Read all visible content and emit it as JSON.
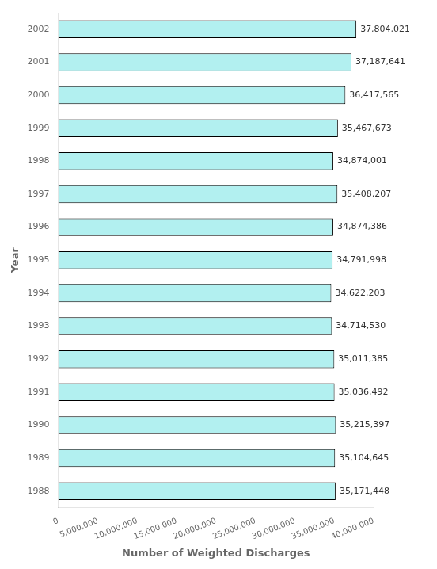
{
  "chart_data": {
    "type": "bar",
    "orientation": "horizontal",
    "categories": [
      "2002",
      "2001",
      "2000",
      "1999",
      "1998",
      "1997",
      "1996",
      "1995",
      "1994",
      "1993",
      "1992",
      "1991",
      "1990",
      "1989",
      "1988"
    ],
    "values": [
      37804021,
      37187641,
      36417565,
      35467673,
      34874001,
      35408207,
      34874386,
      34791998,
      34622203,
      34714530,
      35011385,
      35036492,
      35215397,
      35104645,
      35171448
    ],
    "value_labels": [
      "37,804,021",
      "37,187,641",
      "36,417,565",
      "35,467,673",
      "34,874,001",
      "35,408,207",
      "34,874,386",
      "34,791,998",
      "34,622,203",
      "34,714,530",
      "35,011,385",
      "35,036,492",
      "35,215,397",
      "35,104,645",
      "35,171,448"
    ],
    "data_labels": true,
    "color": "#b2f0f0",
    "xlabel": "Number of Weighted Discharges",
    "ylabel": "Year",
    "xlim": [
      0,
      40000000
    ],
    "xticks": [
      0,
      {
        "value": 5000000,
        "label": "5,000,000"
      },
      {
        "value": 10000000,
        "label": "10,000,000"
      },
      {
        "value": 15000000,
        "label": "15,000,000"
      },
      {
        "value": 20000000,
        "label": "20,000,000"
      },
      {
        "value": 25000000,
        "label": "25,000,000"
      },
      {
        "value": 30000000,
        "label": "30,000,000"
      },
      {
        "value": 35000000,
        "label": "35,000,000"
      },
      {
        "value": 40000000,
        "label": "40,000,000"
      }
    ],
    "grid": false
  }
}
